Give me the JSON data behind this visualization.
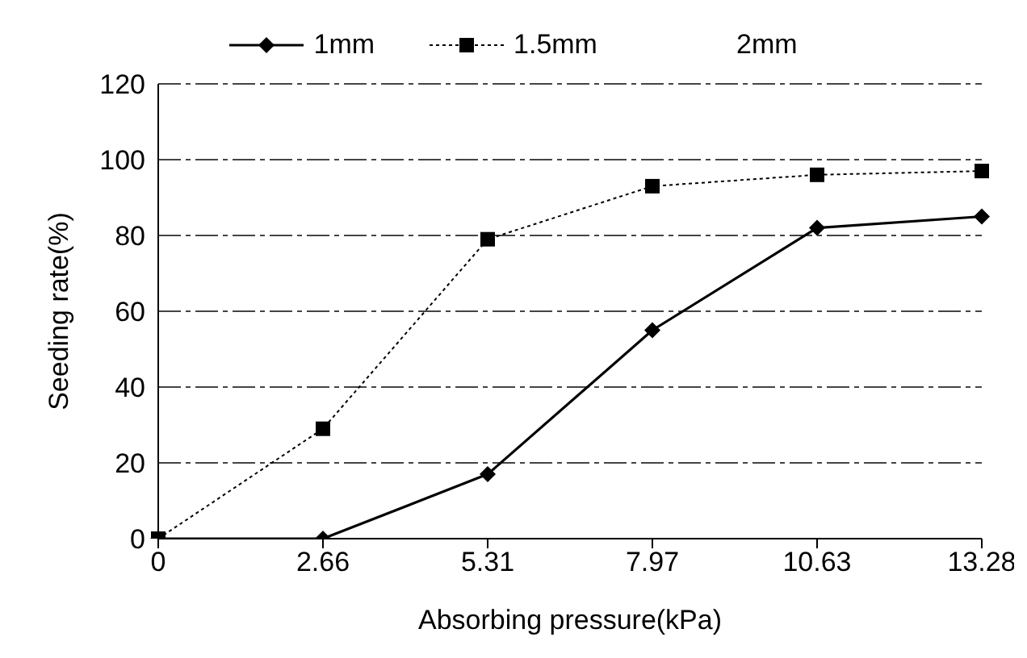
{
  "chart_data": {
    "type": "line",
    "xlabel": "Absorbing pressure(kPa)",
    "ylabel": "Seeding rate(%)",
    "categories": [
      "0",
      "2.66",
      "5.31",
      "7.97",
      "10.63",
      "13.28"
    ],
    "series": [
      {
        "name": "1mm",
        "color": "#000000",
        "marker": "diamond",
        "line_style": "solid",
        "values": [
          0,
          0,
          17,
          55,
          82,
          85
        ]
      },
      {
        "name": "1.5mm",
        "color": "#000000",
        "marker": "square",
        "line_style": "dotted",
        "values": [
          0,
          29,
          79,
          93,
          96,
          97
        ]
      },
      {
        "name": "2mm",
        "marker": "none",
        "values": [
          null,
          null,
          null,
          null,
          null,
          null
        ]
      }
    ],
    "ylim": [
      0,
      120
    ],
    "yticks": [
      0,
      20,
      40,
      60,
      80,
      100,
      120
    ],
    "grid": "y",
    "legend": "top"
  }
}
